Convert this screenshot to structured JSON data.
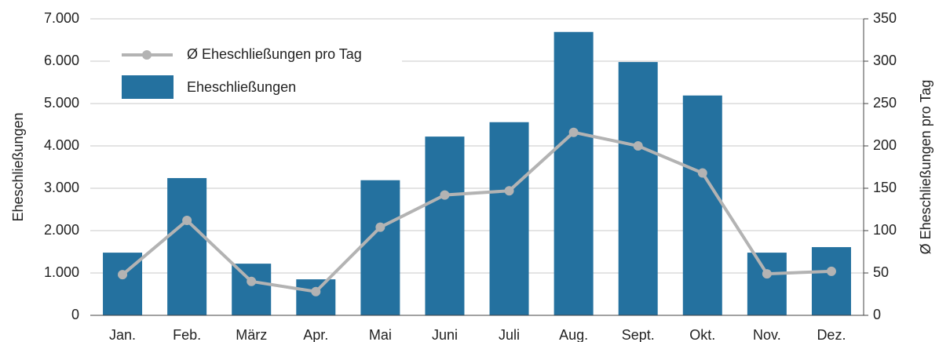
{
  "chart_data": {
    "type": "bar_line",
    "categories": [
      "Jan.",
      "Feb.",
      "März",
      "Apr.",
      "Mai",
      "Juni",
      "Juli",
      "Aug.",
      "Sept.",
      "Okt.",
      "Nov.",
      "Dez."
    ],
    "series": [
      {
        "name": "Eheschließungen",
        "color": "#24719f",
        "type": "bar",
        "axis": "y",
        "values": [
          1480,
          3240,
          1220,
          850,
          3190,
          4220,
          4560,
          6690,
          5980,
          5190,
          1480,
          1610
        ]
      },
      {
        "name": "Ø Eheschließungen pro Tag",
        "color": "#b3b3b3",
        "type": "line",
        "axis": "y2",
        "values": [
          48,
          112,
          40,
          28,
          104,
          142,
          147,
          216,
          200,
          168,
          49,
          52
        ]
      }
    ],
    "y_label": "Eheschließungen",
    "y2_label": "Ø Eheschließungen pro Tag",
    "ylim": [
      0,
      7000
    ],
    "yticks": [
      0,
      {
        "value": 1000,
        "label": "1.000"
      },
      {
        "value": 2000,
        "label": "2.000"
      },
      {
        "value": 3000,
        "label": "3.000"
      },
      {
        "value": 4000,
        "label": "4.000"
      },
      {
        "value": 5000,
        "label": "5.000"
      },
      {
        "value": 6000,
        "label": "6.000"
      },
      {
        "value": 7000,
        "label": "7.000"
      }
    ],
    "y2lim": [
      0,
      350
    ],
    "y2ticks": [
      0,
      50,
      100,
      150,
      200,
      250,
      300,
      350
    ],
    "grid": true,
    "legend": "upper left"
  }
}
